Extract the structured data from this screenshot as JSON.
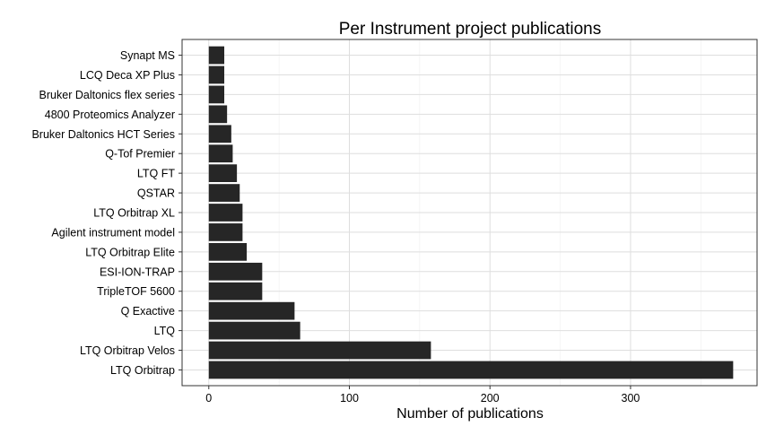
{
  "chart_data": {
    "type": "bar",
    "orientation": "horizontal",
    "title": "Per Instrument project publications",
    "xlabel": "Number of publications",
    "ylabel": "",
    "xlim": [
      -19,
      390
    ],
    "x_ticks": [
      0,
      100,
      200,
      300
    ],
    "grid": true,
    "bar_color": "#262626",
    "categories": [
      "Synapt MS",
      "LCQ Deca XP Plus",
      "Bruker Daltonics flex series",
      "4800 Proteomics Analyzer",
      "Bruker Daltonics HCT Series",
      "Q-Tof Premier",
      "LTQ FT",
      "QSTAR",
      "LTQ Orbitrap XL",
      "Agilent instrument model",
      "LTQ Orbitrap Elite",
      "ESI-ION-TRAP",
      "TripleTOF 5600",
      "Q Exactive",
      "LTQ",
      "LTQ Orbitrap Velos",
      "LTQ Orbitrap"
    ],
    "values": [
      11,
      11,
      11,
      13,
      16,
      17,
      20,
      22,
      24,
      24,
      27,
      38,
      38,
      61,
      65,
      158,
      373
    ]
  }
}
